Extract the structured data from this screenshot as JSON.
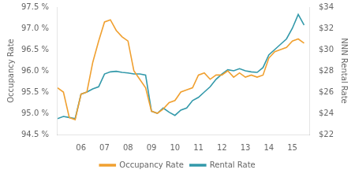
{
  "chart_data": {
    "type": "line",
    "x": [
      2005.0,
      2005.25,
      2005.5,
      2005.75,
      2006.0,
      2006.25,
      2006.5,
      2006.75,
      2007.0,
      2007.25,
      2007.5,
      2007.75,
      2008.0,
      2008.25,
      2008.5,
      2008.75,
      2009.0,
      2009.25,
      2009.5,
      2009.75,
      2010.0,
      2010.25,
      2010.5,
      2010.75,
      2011.0,
      2011.25,
      2011.5,
      2011.75,
      2012.0,
      2012.25,
      2012.5,
      2012.75,
      2013.0,
      2013.25,
      2013.5,
      2013.75,
      2014.0,
      2014.25,
      2014.5,
      2014.75,
      2015.0,
      2015.25,
      2015.5
    ],
    "series": [
      {
        "name": "Occupancy Rate",
        "color": "#f0a030",
        "values": [
          95.6,
          95.5,
          94.9,
          94.85,
          95.45,
          95.5,
          96.2,
          96.7,
          97.15,
          97.2,
          96.95,
          96.8,
          96.7,
          96.0,
          95.8,
          95.6,
          95.05,
          95.0,
          95.1,
          95.25,
          95.3,
          95.5,
          95.55,
          95.6,
          95.9,
          95.95,
          95.8,
          95.9,
          95.9,
          96.0,
          95.85,
          95.95,
          95.85,
          95.9,
          95.85,
          95.9,
          96.3,
          96.45,
          96.5,
          96.55,
          96.7,
          96.75,
          96.65
        ]
      },
      {
        "name": "Rental Rate",
        "color": "#3399aa",
        "axis": "y2",
        "values": [
          23.5,
          23.7,
          23.6,
          23.5,
          25.8,
          26.0,
          26.3,
          26.5,
          27.7,
          27.9,
          27.95,
          27.85,
          27.8,
          27.7,
          27.7,
          27.6,
          24.2,
          24.0,
          24.5,
          24.1,
          23.8,
          24.3,
          24.5,
          25.2,
          25.5,
          26.0,
          26.5,
          27.2,
          27.7,
          28.1,
          28.0,
          28.2,
          28.0,
          27.9,
          27.85,
          28.3,
          29.5,
          30.0,
          30.5,
          31.0,
          32.0,
          33.3,
          32.3
        ]
      }
    ],
    "y_label": "Occupancy Rate",
    "y2_label": "NNN Rental Rate",
    "xlim": [
      2005.0,
      2015.75
    ],
    "xticks": [
      {
        "value": 2006,
        "label": "06"
      },
      {
        "value": 2007,
        "label": "07"
      },
      {
        "value": 2008,
        "label": "08"
      },
      {
        "value": 2009,
        "label": "09"
      },
      {
        "value": 2010,
        "label": "10"
      },
      {
        "value": 2011,
        "label": "11"
      },
      {
        "value": 2012,
        "label": "12"
      },
      {
        "value": 2013,
        "label": "13"
      },
      {
        "value": 2014,
        "label": "14"
      },
      {
        "value": 2015,
        "label": "15"
      }
    ],
    "ylim": [
      94.5,
      97.5
    ],
    "yticks": [
      {
        "value": 94.5,
        "label": "94.5 %"
      },
      {
        "value": 95.0,
        "label": "95.0 %"
      },
      {
        "value": 95.5,
        "label": "95.5 %"
      },
      {
        "value": 96.0,
        "label": "96.0 %"
      },
      {
        "value": 96.5,
        "label": "96.5 %"
      },
      {
        "value": 97.0,
        "label": "97.0 %"
      },
      {
        "value": 97.5,
        "label": "97.5 %"
      }
    ],
    "y2lim": [
      22,
      34
    ],
    "y2ticks": [
      {
        "value": 22,
        "label": "$22"
      },
      {
        "value": 24,
        "label": "$24"
      },
      {
        "value": 26,
        "label": "$26"
      },
      {
        "value": 28,
        "label": "$28"
      },
      {
        "value": 30,
        "label": "$30"
      },
      {
        "value": 32,
        "label": "$32"
      },
      {
        "value": 34,
        "label": "$34"
      }
    ],
    "grid": false,
    "legend": "bottom"
  }
}
